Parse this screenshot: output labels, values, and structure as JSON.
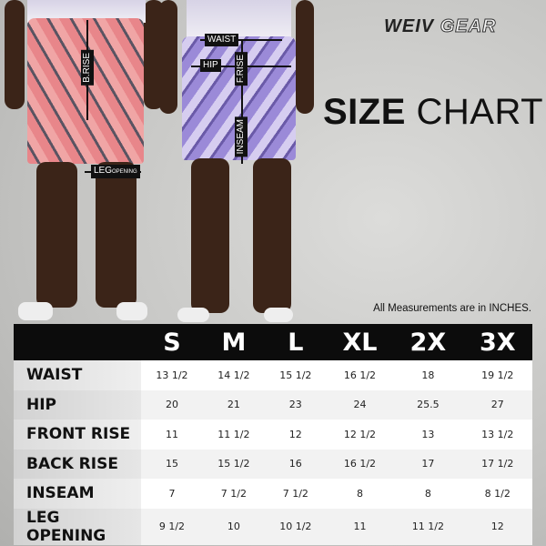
{
  "brand": {
    "part1": "WEIV",
    "part2": "GEAR"
  },
  "title": {
    "bold": "SIZE",
    "light": "CHART"
  },
  "annotations": {
    "waist": "WAIST",
    "hip": "HIP",
    "f_rise": "F.RISE",
    "b_rise": "B.RISE",
    "inseam": "INSEAM",
    "leg": "LEG",
    "opening": "OPENING"
  },
  "note": "All Measurements are in INCHES.",
  "table": {
    "sizes": [
      "S",
      "M",
      "L",
      "XL",
      "2X",
      "3X"
    ],
    "rows": [
      {
        "label": "WAIST",
        "values": [
          "13 1/2",
          "14 1/2",
          "15 1/2",
          "16 1/2",
          "18",
          "19 1/2"
        ]
      },
      {
        "label": "HIP",
        "values": [
          "20",
          "21",
          "23",
          "24",
          "25.5",
          "27"
        ]
      },
      {
        "label": "FRONT RISE",
        "values": [
          "11",
          "11 1/2",
          "12",
          "12 1/2",
          "13",
          "13 1/2"
        ]
      },
      {
        "label": "BACK RISE",
        "values": [
          "15",
          "15 1/2",
          "16",
          "16 1/2",
          "17",
          "17 1/2"
        ]
      },
      {
        "label": "INSEAM",
        "values": [
          "7",
          "7 1/2",
          "7 1/2",
          "8",
          "8",
          "8 1/2"
        ]
      },
      {
        "label": "LEG OPENING",
        "values": [
          "9 1/2",
          "10",
          "10 1/2",
          "11",
          "11 1/2",
          "12"
        ]
      }
    ]
  }
}
